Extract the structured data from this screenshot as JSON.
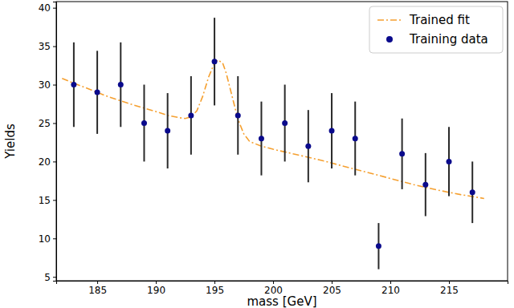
{
  "chart_data": {
    "type": "scatter",
    "x_label": "mass [GeV]",
    "y_label": "Yields",
    "xlim": [
      181.5,
      220
    ],
    "ylim": [
      4.5,
      40.8
    ],
    "xticks": [
      185,
      190,
      195,
      200,
      205,
      210,
      215
    ],
    "yticks": [
      5,
      10,
      15,
      20,
      25,
      30,
      35,
      40
    ],
    "grid": false,
    "legend": "upper right",
    "series": [
      {
        "name": "Trained fit",
        "type": "line",
        "color": "#f5a030",
        "line_style": "dashdot",
        "x": [
          182,
          184,
          186,
          188,
          190,
          191,
          192,
          192.5,
          193,
          193.5,
          194,
          194.5,
          195,
          195.3,
          195.7,
          196,
          196.5,
          197,
          197.5,
          198,
          199,
          200,
          202,
          204,
          206,
          208,
          210,
          212,
          214,
          216,
          218
        ],
        "values": [
          30.8,
          29.6,
          28.4,
          27.4,
          26.5,
          26.0,
          25.7,
          25.6,
          25.8,
          26.6,
          28.5,
          31.0,
          32.8,
          33.2,
          32.8,
          31.5,
          28.5,
          25.5,
          23.6,
          22.6,
          22.0,
          21.6,
          20.9,
          20.2,
          19.4,
          18.6,
          17.8,
          17.0,
          16.3,
          15.7,
          15.2
        ]
      },
      {
        "name": "Training data",
        "type": "scatter",
        "color": "#0a0a8c",
        "marker": "circle",
        "x": [
          183,
          185,
          187,
          189,
          191,
          193,
          195,
          197,
          199,
          201,
          203,
          205,
          207,
          209,
          211,
          213,
          215,
          217
        ],
        "values": [
          30,
          29,
          30,
          25,
          24,
          26,
          33,
          26,
          23,
          25,
          22,
          24,
          23,
          9,
          21,
          17,
          20,
          16
        ],
        "errors": [
          5.5,
          5.4,
          5.5,
          5.0,
          4.9,
          5.1,
          5.7,
          5.1,
          4.8,
          5.0,
          4.7,
          4.9,
          4.8,
          3.0,
          4.6,
          4.1,
          4.5,
          4.0
        ]
      }
    ]
  }
}
